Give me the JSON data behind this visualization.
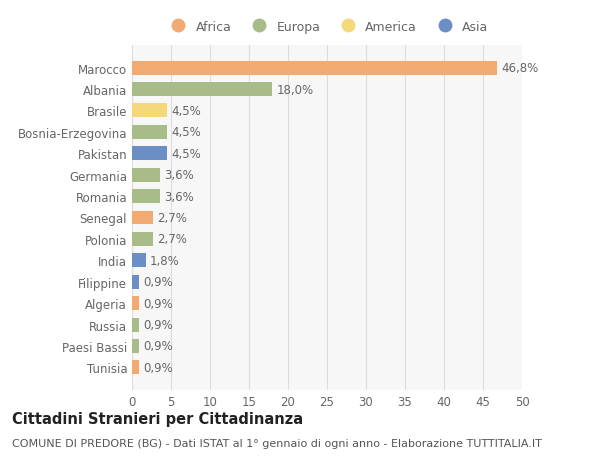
{
  "countries": [
    "Marocco",
    "Albania",
    "Brasile",
    "Bosnia-Erzegovina",
    "Pakistan",
    "Germania",
    "Romania",
    "Senegal",
    "Polonia",
    "India",
    "Filippine",
    "Algeria",
    "Russia",
    "Paesi Bassi",
    "Tunisia"
  ],
  "values": [
    46.8,
    18.0,
    4.5,
    4.5,
    4.5,
    3.6,
    3.6,
    2.7,
    2.7,
    1.8,
    0.9,
    0.9,
    0.9,
    0.9,
    0.9
  ],
  "labels": [
    "46,8%",
    "18,0%",
    "4,5%",
    "4,5%",
    "4,5%",
    "3,6%",
    "3,6%",
    "2,7%",
    "2,7%",
    "1,8%",
    "0,9%",
    "0,9%",
    "0,9%",
    "0,9%",
    "0,9%"
  ],
  "continents": [
    "Africa",
    "Europa",
    "America",
    "Europa",
    "Asia",
    "Europa",
    "Europa",
    "Africa",
    "Europa",
    "Asia",
    "Asia",
    "Africa",
    "Europa",
    "Europa",
    "Africa"
  ],
  "continent_colors": {
    "Africa": "#F0AA72",
    "Europa": "#A8BC8A",
    "America": "#F5D87A",
    "Asia": "#6B8FC4"
  },
  "legend_order": [
    "Africa",
    "Europa",
    "America",
    "Asia"
  ],
  "title": "Cittadini Stranieri per Cittadinanza",
  "subtitle": "COMUNE DI PREDORE (BG) - Dati ISTAT al 1° gennaio di ogni anno - Elaborazione TUTTITALIA.IT",
  "xlim": [
    0,
    50
  ],
  "xticks": [
    0,
    5,
    10,
    15,
    20,
    25,
    30,
    35,
    40,
    45,
    50
  ],
  "background_color": "#ffffff",
  "plot_bg_color": "#f7f7f7",
  "grid_color": "#dddddd",
  "bar_height": 0.65,
  "label_fontsize": 8.5,
  "tick_fontsize": 8.5,
  "title_fontsize": 10.5,
  "subtitle_fontsize": 8.0,
  "label_color": "#666666",
  "tick_color": "#666666"
}
